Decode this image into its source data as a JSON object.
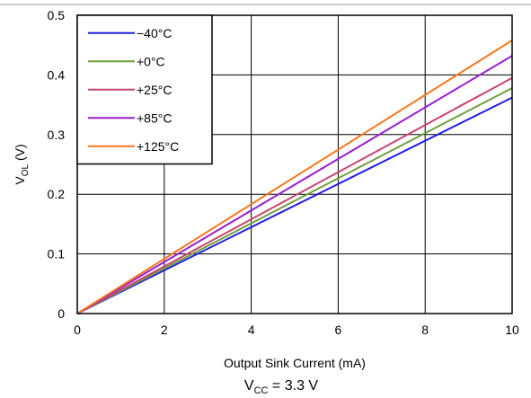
{
  "chart_data": {
    "type": "line",
    "xlabel": "Output Sink Current (mA)",
    "ylabel_main": "V",
    "ylabel_sub": "OL",
    "ylabel_unit": " (V)",
    "xlim": [
      0,
      10
    ],
    "ylim": [
      0,
      0.5
    ],
    "x_ticks": [
      0,
      2,
      4,
      6,
      8,
      10
    ],
    "x_tick_labels": [
      "0",
      "2",
      "4",
      "6",
      "8",
      "10"
    ],
    "y_ticks": [
      0,
      0.1,
      0.2,
      0.3,
      0.4,
      0.5
    ],
    "y_tick_labels": [
      "0",
      "0.1",
      "0.2",
      "0.3",
      "0.4",
      "0.5"
    ],
    "grid": true,
    "legend_position": "top-left",
    "series": [
      {
        "name": "−40°C",
        "color": "#1f1fe0",
        "x": [
          0,
          10
        ],
        "y": [
          0,
          0.362
        ]
      },
      {
        "name": "+0°C",
        "color": "#6f9f3f",
        "x": [
          0,
          10
        ],
        "y": [
          0,
          0.378
        ]
      },
      {
        "name": "+25°C",
        "color": "#c8456f",
        "x": [
          0,
          10
        ],
        "y": [
          0,
          0.395
        ]
      },
      {
        "name": "+85°C",
        "color": "#9a1fd0",
        "x": [
          0,
          10
        ],
        "y": [
          0,
          0.432
        ]
      },
      {
        "name": "+125°C",
        "color": "#f5781e",
        "x": [
          0,
          10
        ],
        "y": [
          0,
          0.458
        ]
      }
    ],
    "condition_main": "V",
    "condition_sub": "CC",
    "condition_value": " = 3.3 V"
  }
}
